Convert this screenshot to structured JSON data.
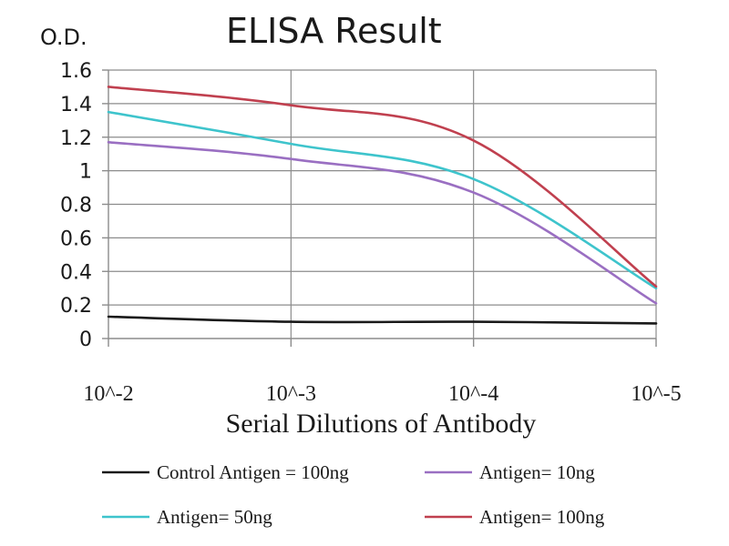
{
  "chart_data": {
    "type": "line",
    "title": "ELISA Result",
    "ylabel": "O.D.",
    "xlabel": "Serial Dilutions of Antibody",
    "categories": [
      "10^-2",
      "10^-3",
      "10^-4",
      "10^-5"
    ],
    "ylim": [
      0,
      1.6
    ],
    "yticks": [
      0,
      0.2,
      0.4,
      0.6,
      0.8,
      1,
      1.2,
      1.4,
      1.6
    ],
    "grid": true,
    "legend_position": "bottom",
    "series": [
      {
        "name": "Control Antigen = 100ng",
        "color": "#1a1a1a",
        "values": [
          0.13,
          0.1,
          0.1,
          0.09
        ]
      },
      {
        "name": "Antigen= 10ng",
        "color": "#9a6fc2",
        "values": [
          1.17,
          1.07,
          0.87,
          0.21
        ]
      },
      {
        "name": "Antigen= 50ng",
        "color": "#3ec4cc",
        "values": [
          1.35,
          1.16,
          0.95,
          0.3
        ]
      },
      {
        "name": "Antigen= 100ng",
        "color": "#c0404f",
        "values": [
          1.5,
          1.39,
          1.18,
          0.31
        ]
      }
    ]
  }
}
